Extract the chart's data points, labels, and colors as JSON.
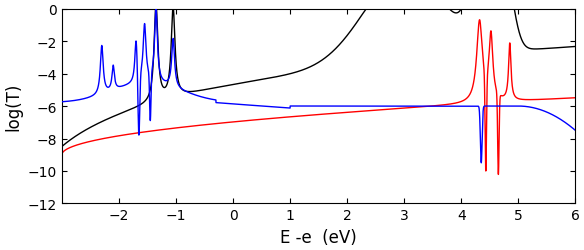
{
  "xlim": [
    -3.0,
    6.0
  ],
  "ylim": [
    -12,
    0
  ],
  "xlabel": "E -e  (eV)",
  "ylabel": "log(T)",
  "xticks": [
    -2,
    -1,
    0,
    1,
    2,
    3,
    4,
    5,
    6
  ],
  "yticks": [
    -12,
    -10,
    -8,
    -6,
    -4,
    -2,
    0
  ],
  "line_colors": [
    "black",
    "red",
    "blue"
  ],
  "background_color": "#ffffff",
  "tick_label_fontsize": 10,
  "axis_label_fontsize": 12
}
